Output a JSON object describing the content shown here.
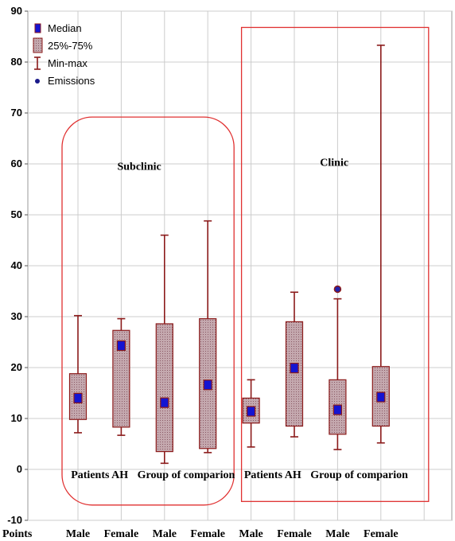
{
  "chart_data": {
    "type": "boxplot",
    "ylim": [
      -10,
      90
    ],
    "y_ticks": [
      -10,
      0,
      10,
      20,
      30,
      40,
      50,
      60,
      70,
      80,
      90
    ],
    "x_axis_label": "Points",
    "categories": [
      "Male",
      "Female",
      "Male",
      "Female",
      "Male",
      "Female",
      "Male",
      "Female"
    ],
    "legend": {
      "position": "top-left",
      "items": [
        "Median",
        "25%-75%",
        "Min-max",
        "Emissions"
      ]
    },
    "colors": {
      "box_fill": "#b79aa2",
      "box_edge": "#8b1a1a",
      "whisker": "#8b1a1a",
      "median": "#1414d2",
      "region_border": "#e03030",
      "grid": "#cccccc"
    },
    "regions": [
      {
        "label": "Subclinic",
        "shape": "rounded",
        "categories": [
          0,
          3
        ]
      },
      {
        "label": "Clinic",
        "shape": "rect",
        "categories": [
          4,
          7
        ]
      }
    ],
    "subgroups": [
      {
        "label": "Patients AH",
        "categories": [
          0,
          1
        ]
      },
      {
        "label": "Group of comparion",
        "categories": [
          2,
          3
        ]
      },
      {
        "label": "Patients AH",
        "categories": [
          4,
          5
        ]
      },
      {
        "label": "Group of comparion",
        "categories": [
          6,
          7
        ]
      }
    ],
    "boxes": [
      {
        "min": 7.2,
        "q1": 9.8,
        "median": 14.0,
        "q3": 18.8,
        "max": 30.2,
        "outliers": []
      },
      {
        "min": 6.7,
        "q1": 8.3,
        "median": 24.3,
        "q3": 27.3,
        "max": 29.6,
        "outliers": []
      },
      {
        "min": 1.2,
        "q1": 3.5,
        "median": 13.1,
        "q3": 28.6,
        "max": 46.0,
        "outliers": []
      },
      {
        "min": 3.3,
        "q1": 4.1,
        "median": 16.6,
        "q3": 29.6,
        "max": 48.8,
        "outliers": []
      },
      {
        "min": 4.4,
        "q1": 9.1,
        "median": 11.4,
        "q3": 14.0,
        "max": 17.6,
        "outliers": []
      },
      {
        "min": 6.4,
        "q1": 8.5,
        "median": 19.9,
        "q3": 29.0,
        "max": 34.8,
        "outliers": []
      },
      {
        "min": 3.9,
        "q1": 6.9,
        "median": 11.7,
        "q3": 17.6,
        "max": 33.5,
        "outliers": [
          35.4
        ]
      },
      {
        "min": 5.2,
        "q1": 8.5,
        "median": 14.2,
        "q3": 20.2,
        "max": 83.3,
        "outliers": []
      }
    ]
  }
}
